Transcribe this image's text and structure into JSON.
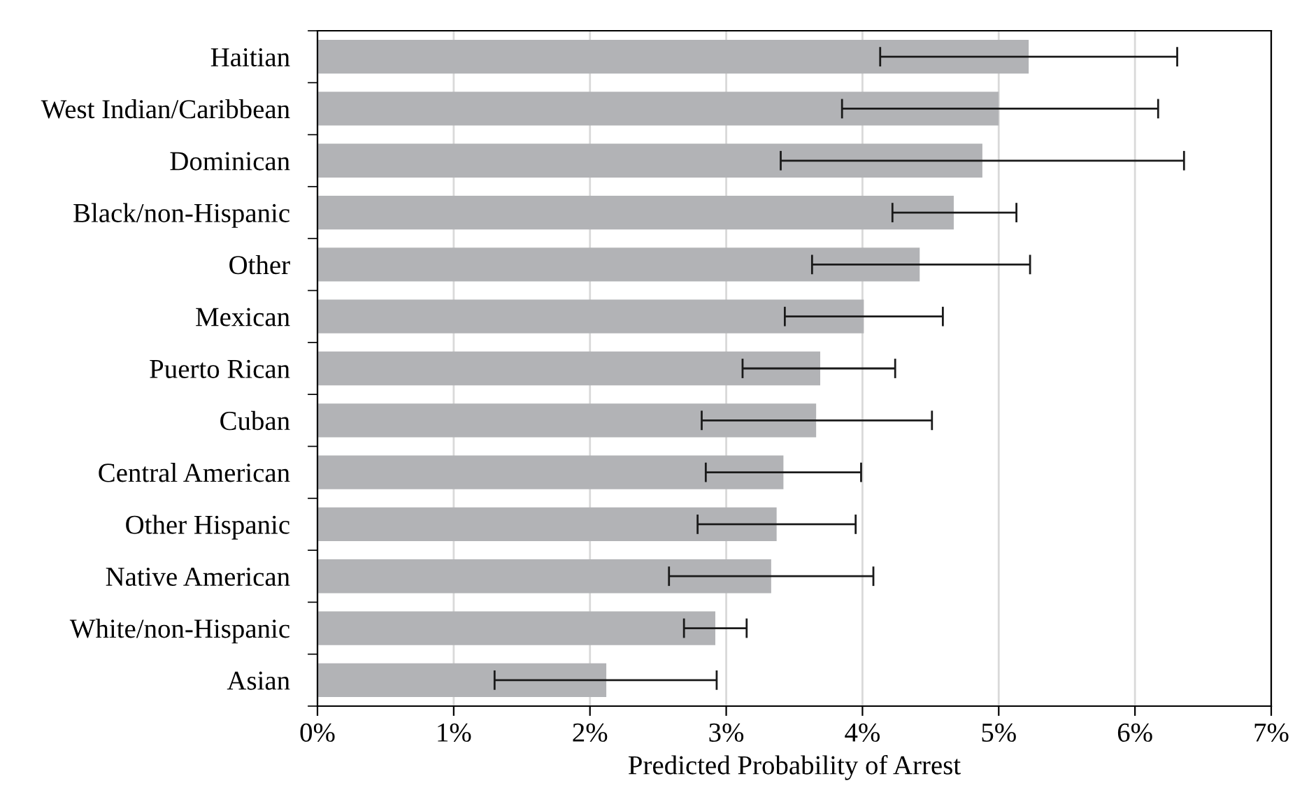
{
  "chart_data": {
    "type": "bar",
    "orientation": "horizontal",
    "xlabel": "Predicted Probability of Arrest",
    "categories": [
      "Haitian",
      "West Indian/Caribbean",
      "Dominican",
      "Black/non-Hispanic",
      "Other",
      "Mexican",
      "Puerto Rican",
      "Cuban",
      "Central American",
      "Other Hispanic",
      "Native American",
      "White/non-Hispanic",
      "Asian"
    ],
    "values": [
      5.22,
      5.0,
      4.88,
      4.67,
      4.42,
      4.01,
      3.69,
      3.66,
      3.42,
      3.37,
      3.33,
      2.92,
      2.12
    ],
    "errors": [
      [
        4.13,
        6.31
      ],
      [
        3.85,
        6.17
      ],
      [
        3.4,
        6.36
      ],
      [
        4.22,
        5.13
      ],
      [
        3.63,
        5.23
      ],
      [
        3.43,
        4.59
      ],
      [
        3.12,
        4.24
      ],
      [
        2.82,
        4.51
      ],
      [
        2.85,
        3.99
      ],
      [
        2.79,
        3.95
      ],
      [
        2.58,
        4.08
      ],
      [
        2.69,
        3.15
      ],
      [
        1.3,
        2.93
      ]
    ],
    "color": "#b2b3b6",
    "xlim": [
      0,
      7
    ],
    "xticks": [
      {
        "value": 0,
        "label": "0%"
      },
      {
        "value": 1,
        "label": "1%"
      },
      {
        "value": 2,
        "label": "2%"
      },
      {
        "value": 3,
        "label": "3%"
      },
      {
        "value": 4,
        "label": "4%"
      },
      {
        "value": 5,
        "label": "5%"
      },
      {
        "value": 6,
        "label": "6%"
      },
      {
        "value": 7,
        "label": "7%"
      }
    ],
    "grid": "x",
    "legend": false
  }
}
